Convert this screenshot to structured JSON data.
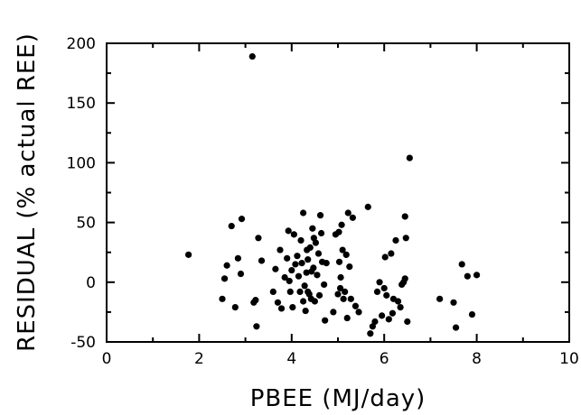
{
  "chart_data": {
    "type": "scatter",
    "title": "",
    "xlabel": "PBEE (MJ/day)",
    "ylabel": "RESIDUAL (% actual REE)",
    "xlim": [
      0,
      10
    ],
    "ylim": [
      -50,
      200
    ],
    "xticks": [
      0,
      2,
      4,
      6,
      8,
      10
    ],
    "yticks": [
      -50,
      0,
      50,
      100,
      150,
      200
    ],
    "x_tick_labels": [
      "0",
      "2",
      "4",
      "6",
      "8",
      "10"
    ],
    "y_tick_labels": [
      "-50",
      "0",
      "50",
      "100",
      "150",
      "200"
    ],
    "grid": false,
    "marker_color": "#000000",
    "points": [
      {
        "x": 1.77,
        "y": 23
      },
      {
        "x": 2.5,
        "y": -14
      },
      {
        "x": 2.55,
        "y": 3
      },
      {
        "x": 2.6,
        "y": 14
      },
      {
        "x": 2.7,
        "y": 47
      },
      {
        "x": 2.78,
        "y": -21
      },
      {
        "x": 2.84,
        "y": 20
      },
      {
        "x": 2.9,
        "y": 7
      },
      {
        "x": 2.92,
        "y": 53
      },
      {
        "x": 3.15,
        "y": 189
      },
      {
        "x": 3.18,
        "y": -17
      },
      {
        "x": 3.22,
        "y": -15
      },
      {
        "x": 3.24,
        "y": -37
      },
      {
        "x": 3.28,
        "y": 37
      },
      {
        "x": 3.35,
        "y": 18
      },
      {
        "x": 3.6,
        "y": -8
      },
      {
        "x": 3.65,
        "y": 11
      },
      {
        "x": 3.7,
        "y": -17
      },
      {
        "x": 3.75,
        "y": 27
      },
      {
        "x": 3.78,
        "y": -22
      },
      {
        "x": 3.85,
        "y": 4
      },
      {
        "x": 3.9,
        "y": 20
      },
      {
        "x": 3.93,
        "y": 43
      },
      {
        "x": 3.95,
        "y": 1
      },
      {
        "x": 3.97,
        "y": -8
      },
      {
        "x": 4.0,
        "y": 10
      },
      {
        "x": 4.02,
        "y": -21
      },
      {
        "x": 4.05,
        "y": 40
      },
      {
        "x": 4.08,
        "y": 15
      },
      {
        "x": 4.12,
        "y": 22
      },
      {
        "x": 4.15,
        "y": 5
      },
      {
        "x": 4.18,
        "y": -8
      },
      {
        "x": 4.2,
        "y": 35
      },
      {
        "x": 4.22,
        "y": 16
      },
      {
        "x": 4.25,
        "y": 58
      },
      {
        "x": 4.28,
        "y": -3
      },
      {
        "x": 4.3,
        "y": -24
      },
      {
        "x": 4.32,
        "y": 8
      },
      {
        "x": 4.35,
        "y": 19
      },
      {
        "x": 4.38,
        "y": -10
      },
      {
        "x": 4.4,
        "y": 29
      },
      {
        "x": 4.42,
        "y": -14
      },
      {
        "x": 4.45,
        "y": 45
      },
      {
        "x": 4.47,
        "y": 12
      },
      {
        "x": 4.5,
        "y": -16
      },
      {
        "x": 4.52,
        "y": 33
      },
      {
        "x": 4.55,
        "y": 6
      },
      {
        "x": 4.58,
        "y": 24
      },
      {
        "x": 4.6,
        "y": -11
      },
      {
        "x": 4.62,
        "y": 56
      },
      {
        "x": 4.64,
        "y": 41
      },
      {
        "x": 4.66,
        "y": 17
      },
      {
        "x": 4.7,
        "y": -2
      },
      {
        "x": 4.72,
        "y": -32
      },
      {
        "x": 4.75,
        "y": 16
      },
      {
        "x": 4.35,
        "y": -8
      },
      {
        "x": 4.43,
        "y": 9
      },
      {
        "x": 4.25,
        "y": -16
      },
      {
        "x": 4.48,
        "y": 37
      },
      {
        "x": 4.33,
        "y": 27
      },
      {
        "x": 4.9,
        "y": -25
      },
      {
        "x": 4.95,
        "y": 40
      },
      {
        "x": 5.0,
        "y": -10
      },
      {
        "x": 5.03,
        "y": 17
      },
      {
        "x": 5.05,
        "y": -5
      },
      {
        "x": 5.08,
        "y": 48
      },
      {
        "x": 5.1,
        "y": 27
      },
      {
        "x": 5.12,
        "y": -14
      },
      {
        "x": 5.15,
        "y": -8
      },
      {
        "x": 5.18,
        "y": 23
      },
      {
        "x": 5.2,
        "y": -30
      },
      {
        "x": 5.22,
        "y": 58
      },
      {
        "x": 5.25,
        "y": 13
      },
      {
        "x": 5.28,
        "y": -14
      },
      {
        "x": 5.32,
        "y": 54
      },
      {
        "x": 5.38,
        "y": -20
      },
      {
        "x": 5.45,
        "y": -25
      },
      {
        "x": 5.02,
        "y": 42
      },
      {
        "x": 5.06,
        "y": 4
      },
      {
        "x": 5.65,
        "y": 63
      },
      {
        "x": 5.7,
        "y": -43
      },
      {
        "x": 5.75,
        "y": -37
      },
      {
        "x": 5.8,
        "y": -33
      },
      {
        "x": 5.85,
        "y": -8
      },
      {
        "x": 5.9,
        "y": 0
      },
      {
        "x": 5.95,
        "y": -28
      },
      {
        "x": 6.0,
        "y": -5
      },
      {
        "x": 6.02,
        "y": 21
      },
      {
        "x": 6.05,
        "y": -11
      },
      {
        "x": 6.1,
        "y": -31
      },
      {
        "x": 6.15,
        "y": 24
      },
      {
        "x": 6.18,
        "y": -26
      },
      {
        "x": 6.2,
        "y": -14
      },
      {
        "x": 6.25,
        "y": 35
      },
      {
        "x": 6.3,
        "y": -16
      },
      {
        "x": 6.35,
        "y": -21
      },
      {
        "x": 6.38,
        "y": -2
      },
      {
        "x": 6.42,
        "y": 0
      },
      {
        "x": 6.45,
        "y": 55
      },
      {
        "x": 6.47,
        "y": 37
      },
      {
        "x": 6.5,
        "y": -33
      },
      {
        "x": 6.55,
        "y": 104
      },
      {
        "x": 7.2,
        "y": -14
      },
      {
        "x": 7.5,
        "y": -17
      },
      {
        "x": 7.55,
        "y": -38
      },
      {
        "x": 7.68,
        "y": 15
      },
      {
        "x": 7.8,
        "y": 5
      },
      {
        "x": 7.9,
        "y": -27
      },
      {
        "x": 8.0,
        "y": 6
      },
      {
        "x": 6.45,
        "y": 3
      }
    ]
  }
}
